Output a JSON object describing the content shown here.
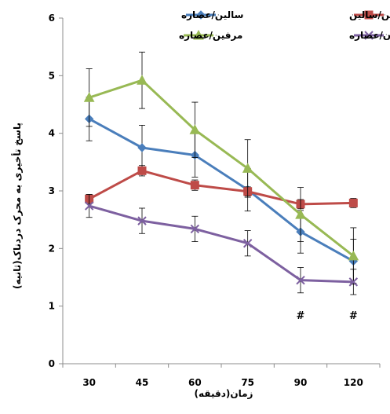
{
  "chart_data": {
    "type": "line",
    "title": "",
    "xlabel": "زمان(دقیقه)",
    "ylabel": "پاسخ تأخیری به محرک دردناک(ثانیه)",
    "categories": [
      "30",
      "45",
      "60",
      "75",
      "90",
      "120"
    ],
    "ylim": [
      0,
      6
    ],
    "yticks": [
      "0",
      "1",
      "2",
      "3",
      "4",
      "5",
      "6"
    ],
    "grid": false,
    "legend_position": "top",
    "series": [
      {
        "name": "سالین/عصاره",
        "color": "#4a7ebb",
        "marker": "diamond",
        "values": [
          4.25,
          3.75,
          3.62,
          3.02,
          2.29,
          1.78
        ],
        "errors": [
          0.38,
          0.39,
          0.38,
          0.37,
          0.37,
          0.38
        ]
      },
      {
        "name": "سالین/سالین",
        "color": "#be4b48",
        "marker": "square",
        "values": [
          2.86,
          3.35,
          3.1,
          2.99,
          2.77,
          2.79
        ],
        "errors": [
          0.08,
          0.09,
          0.09,
          0.08,
          0.08,
          0.08
        ]
      },
      {
        "name": "مرفین/عصاره",
        "color": "#98b954",
        "marker": "triangle",
        "values": [
          4.62,
          4.92,
          4.06,
          3.39,
          2.59,
          1.87
        ],
        "errors": [
          0.5,
          0.49,
          0.48,
          0.5,
          0.47,
          0.49
        ]
      },
      {
        "name": "نالوکسان/عصاره",
        "color": "#7d60a0",
        "marker": "x",
        "values": [
          2.74,
          2.48,
          2.34,
          2.09,
          1.45,
          1.42
        ],
        "errors": [
          0.2,
          0.22,
          0.22,
          0.22,
          0.22,
          0.22
        ]
      }
    ],
    "annotations": [
      {
        "category": "90",
        "text": "#"
      },
      {
        "category": "120",
        "text": "#"
      }
    ]
  }
}
